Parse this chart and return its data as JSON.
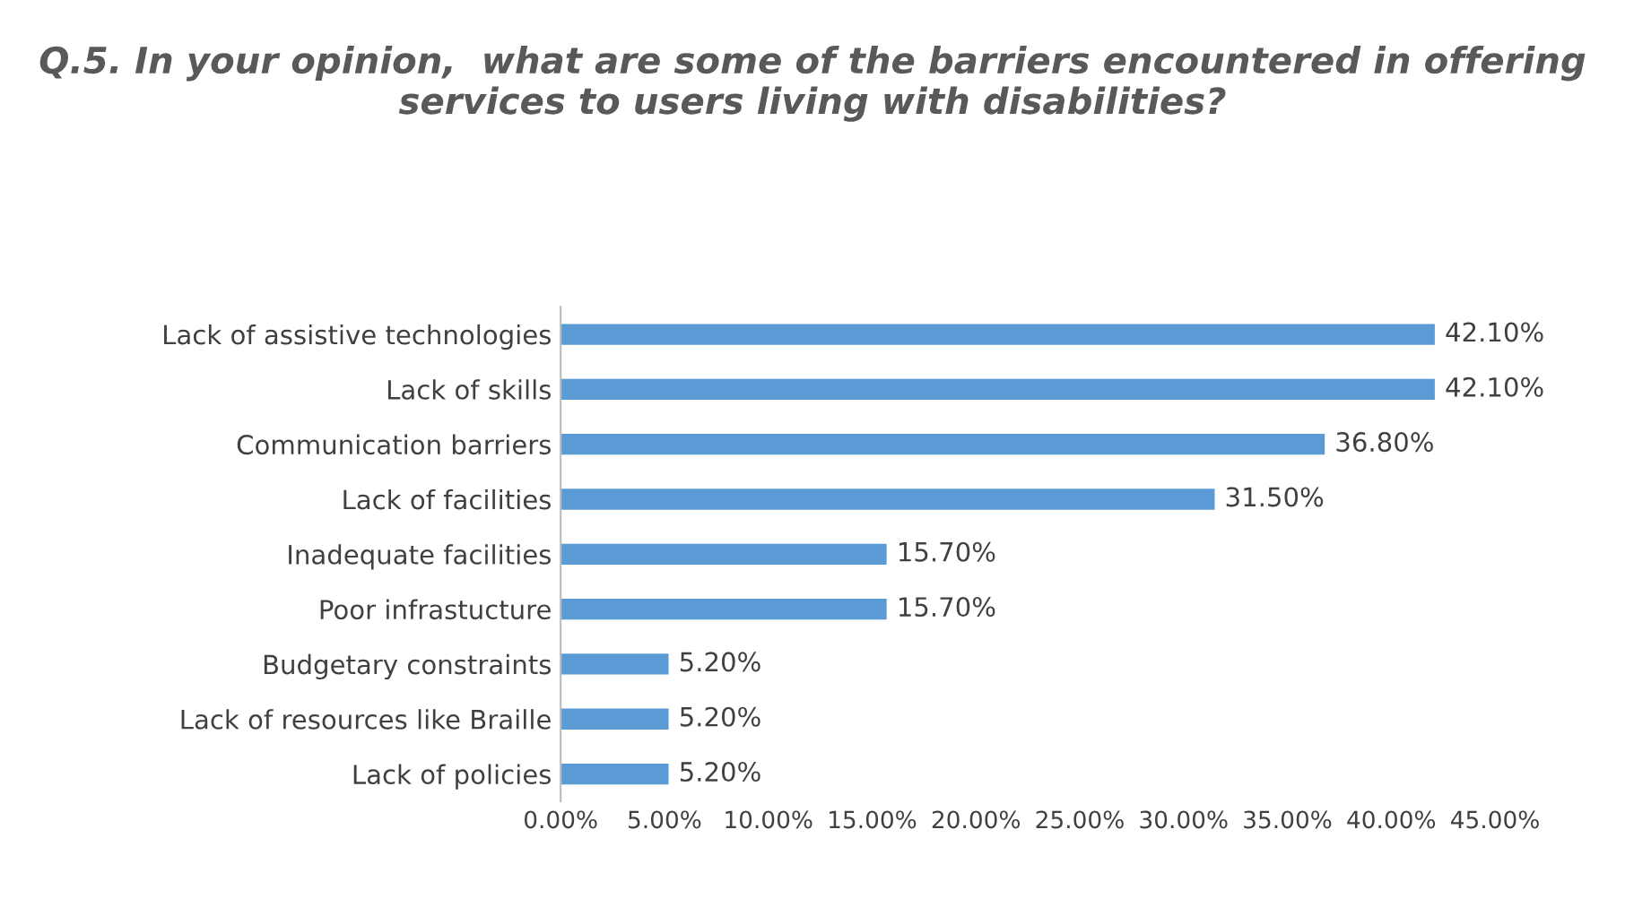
{
  "chart_data": {
    "type": "bar",
    "orientation": "horizontal",
    "title": "Q.5. In your opinion,  what are some of the barriers encountered in offering services to users living with disabilities?",
    "categories": [
      "Lack of assistive technologies",
      "Lack of skills",
      "Communication barriers",
      "Lack of facilities",
      "Inadequate facilities",
      "Poor infrastucture",
      "Budgetary constraints",
      "Lack of resources like Braille",
      "Lack of policies"
    ],
    "values": [
      42.1,
      42.1,
      36.8,
      31.5,
      15.7,
      15.7,
      5.2,
      5.2,
      5.2
    ],
    "value_labels": [
      "42.10%",
      "42.10%",
      "36.80%",
      "31.50%",
      "15.70%",
      "15.70%",
      "5.20%",
      "5.20%",
      "5.20%"
    ],
    "color": "#5b9bd5",
    "xlim": [
      0,
      45
    ],
    "xticks": [
      {
        "value": 0,
        "label": "0.00%"
      },
      {
        "value": 5,
        "label": "5.00%"
      },
      {
        "value": 10,
        "label": "10.00%"
      },
      {
        "value": 15,
        "label": "15.00%"
      },
      {
        "value": 20,
        "label": "20.00%"
      },
      {
        "value": 25,
        "label": "25.00%"
      },
      {
        "value": 30,
        "label": "30.00%"
      },
      {
        "value": 35,
        "label": "35.00%"
      },
      {
        "value": 40,
        "label": "40.00%"
      },
      {
        "value": 45,
        "label": "45.00%"
      }
    ],
    "grid": false,
    "legend": false
  }
}
